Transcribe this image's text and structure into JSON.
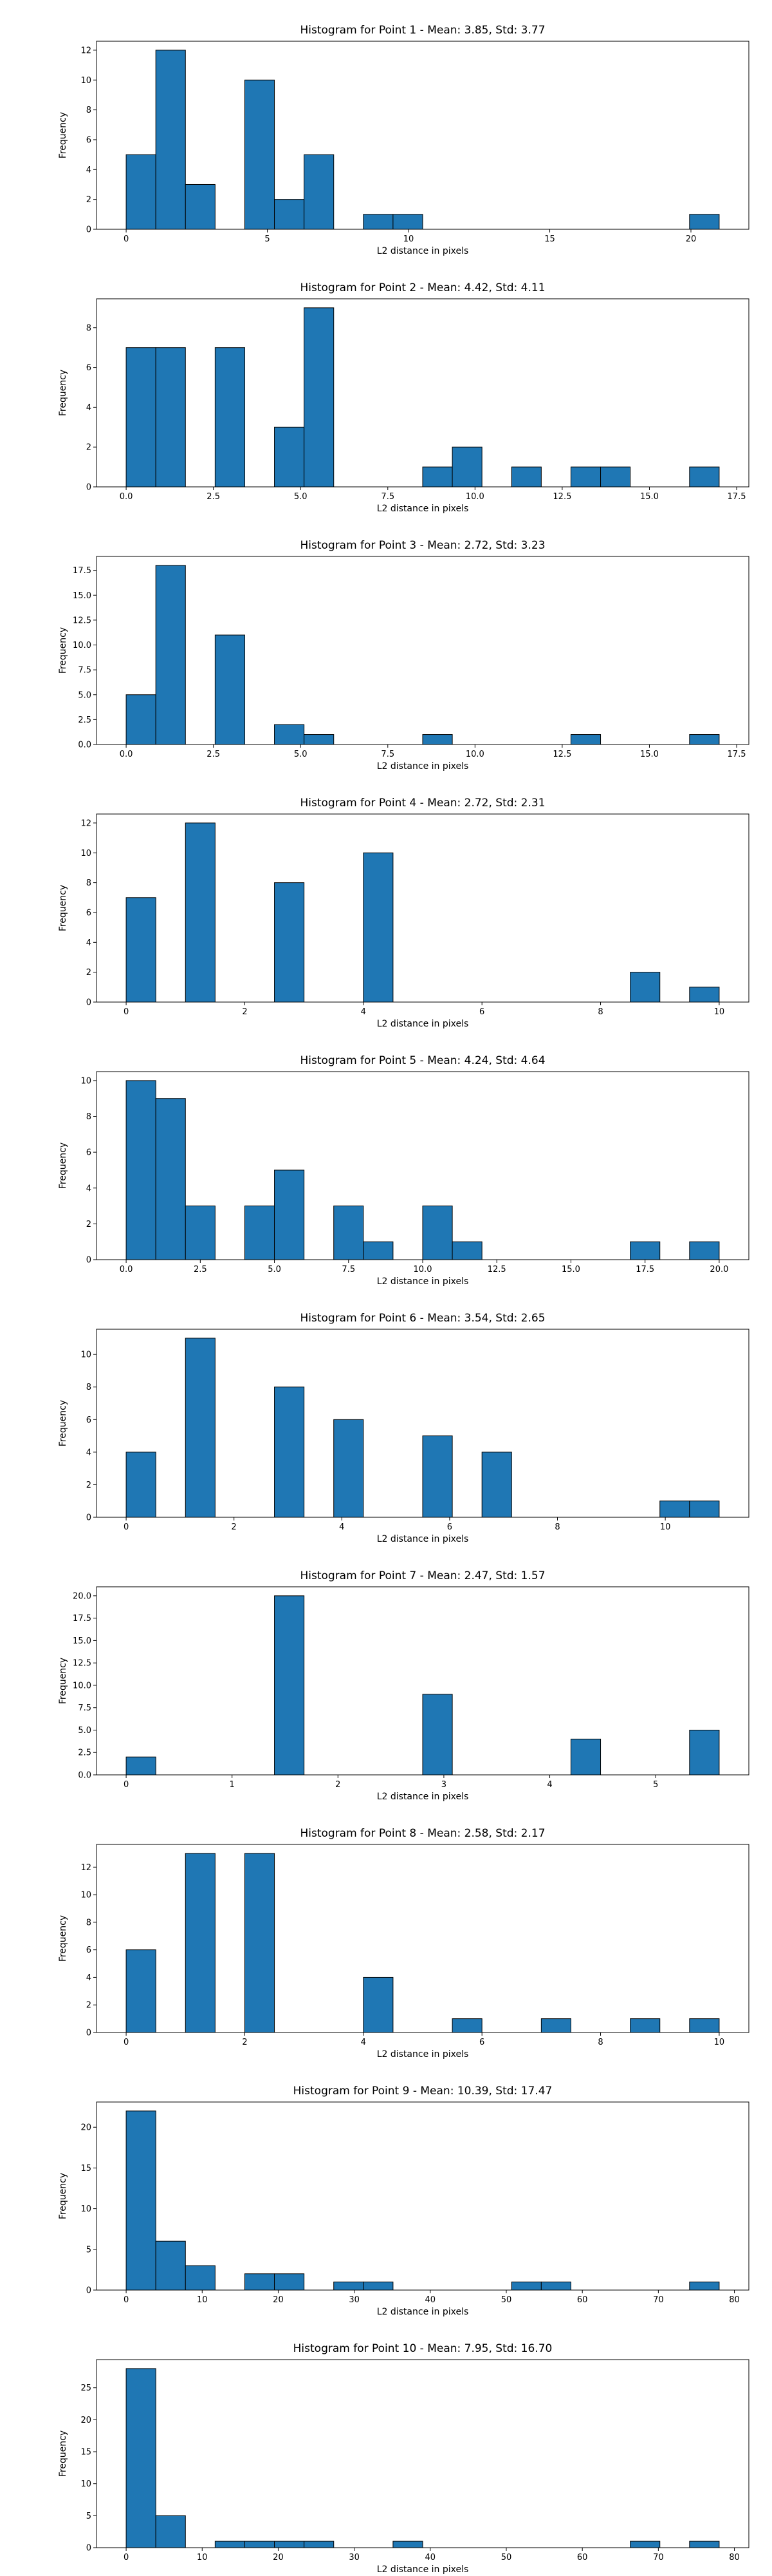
{
  "colors": {
    "bar_fill": "#1f77b4",
    "bar_edge": "#000000",
    "axes": "#000000",
    "background": "#ffffff"
  },
  "chart_data": [
    {
      "type": "bar",
      "title": "Histogram for Point 1 - Mean: 3.85, Std: 3.77",
      "xlabel": "L2 distance in pixels",
      "ylabel": "Frequency",
      "xlim": [
        -1.05,
        22.05
      ],
      "ylim": [
        0,
        12.6
      ],
      "xticks": [
        0,
        5,
        10,
        15,
        20
      ],
      "yticks": [
        0,
        2,
        4,
        6,
        8,
        10,
        12
      ],
      "grid": false,
      "bins": [
        [
          0,
          1.05,
          5
        ],
        [
          1.05,
          2.1,
          12
        ],
        [
          2.1,
          3.15,
          3
        ],
        [
          4.2,
          5.25,
          10
        ],
        [
          5.25,
          6.3,
          2
        ],
        [
          6.3,
          7.35,
          5
        ],
        [
          8.4,
          9.45,
          1
        ],
        [
          9.45,
          10.5,
          1
        ],
        [
          19.95,
          21.0,
          1
        ]
      ]
    },
    {
      "type": "bar",
      "title": "Histogram for Point 2 - Mean: 4.42, Std: 4.11",
      "xlabel": "L2 distance in pixels",
      "ylabel": "Frequency",
      "xlim": [
        -0.85,
        17.85
      ],
      "ylim": [
        0,
        9.45
      ],
      "xticks": [
        0.0,
        2.5,
        5.0,
        7.5,
        10.0,
        12.5,
        15.0,
        17.5
      ],
      "ytick_labels": [
        "0",
        "2",
        "4",
        "6",
        "8"
      ],
      "yticks": [
        0,
        2,
        4,
        6,
        8
      ],
      "grid": false,
      "bins": [
        [
          0,
          0.85,
          7
        ],
        [
          0.85,
          1.7,
          7
        ],
        [
          2.55,
          3.4,
          7
        ],
        [
          4.25,
          5.1,
          3
        ],
        [
          5.1,
          5.95,
          9
        ],
        [
          8.5,
          9.35,
          1
        ],
        [
          9.35,
          10.2,
          2
        ],
        [
          11.05,
          11.9,
          1
        ],
        [
          12.75,
          13.6,
          1
        ],
        [
          13.6,
          14.45,
          1
        ],
        [
          16.15,
          17.0,
          1
        ]
      ]
    },
    {
      "type": "bar",
      "title": "Histogram for Point 3 - Mean: 2.72, Std: 3.23",
      "xlabel": "L2 distance in pixels",
      "ylabel": "Frequency",
      "xlim": [
        -0.85,
        17.85
      ],
      "ylim": [
        0,
        18.9
      ],
      "xticks": [
        0.0,
        2.5,
        5.0,
        7.5,
        10.0,
        12.5,
        15.0,
        17.5
      ],
      "yticks": [
        0.0,
        2.5,
        5.0,
        7.5,
        10.0,
        12.5,
        15.0,
        17.5
      ],
      "grid": false,
      "bins": [
        [
          0,
          0.85,
          5
        ],
        [
          0.85,
          1.7,
          18
        ],
        [
          2.55,
          3.4,
          11
        ],
        [
          4.25,
          5.1,
          2
        ],
        [
          5.1,
          5.95,
          1
        ],
        [
          8.5,
          9.35,
          1
        ],
        [
          12.75,
          13.6,
          1
        ],
        [
          16.15,
          17.0,
          1
        ]
      ]
    },
    {
      "type": "bar",
      "title": "Histogram for Point 4 - Mean: 2.72, Std: 2.31",
      "xlabel": "L2 distance in pixels",
      "ylabel": "Frequency",
      "xlim": [
        -0.5,
        10.5
      ],
      "ylim": [
        0,
        12.6
      ],
      "xticks": [
        0,
        2,
        4,
        6,
        8,
        10
      ],
      "yticks": [
        0,
        2,
        4,
        6,
        8,
        10,
        12
      ],
      "grid": false,
      "bins": [
        [
          0,
          0.5,
          7
        ],
        [
          1.0,
          1.5,
          12
        ],
        [
          2.5,
          3.0,
          8
        ],
        [
          4.0,
          4.5,
          10
        ],
        [
          8.5,
          9.0,
          2
        ],
        [
          9.5,
          10.0,
          1
        ]
      ]
    },
    {
      "type": "bar",
      "title": "Histogram for Point 5 - Mean: 4.24, Std: 4.64",
      "xlabel": "L2 distance in pixels",
      "ylabel": "Frequency",
      "xlim": [
        -1.0,
        21.0
      ],
      "ylim": [
        0,
        10.5
      ],
      "xticks": [
        0.0,
        2.5,
        5.0,
        7.5,
        10.0,
        12.5,
        15.0,
        17.5,
        20.0
      ],
      "yticks": [
        0,
        2,
        4,
        6,
        8,
        10
      ],
      "grid": false,
      "bins": [
        [
          0,
          1,
          10
        ],
        [
          1,
          2,
          9
        ],
        [
          2,
          3,
          3
        ],
        [
          4,
          5,
          3
        ],
        [
          5,
          6,
          5
        ],
        [
          7,
          8,
          3
        ],
        [
          8,
          9,
          1
        ],
        [
          10,
          11,
          3
        ],
        [
          11,
          12,
          1
        ],
        [
          17,
          18,
          1
        ],
        [
          19,
          20,
          1
        ]
      ]
    },
    {
      "type": "bar",
      "title": "Histogram for Point 6 - Mean: 3.54, Std: 2.65",
      "xlabel": "L2 distance in pixels",
      "ylabel": "Frequency",
      "xlim": [
        -0.55,
        11.55
      ],
      "ylim": [
        0,
        11.55
      ],
      "xticks": [
        0,
        2,
        4,
        6,
        8,
        10
      ],
      "yticks": [
        0,
        2,
        4,
        6,
        8,
        10
      ],
      "grid": false,
      "bins": [
        [
          0,
          0.55,
          4
        ],
        [
          1.1,
          1.65,
          11
        ],
        [
          2.75,
          3.3,
          8
        ],
        [
          3.85,
          4.4,
          6
        ],
        [
          5.5,
          6.05,
          5
        ],
        [
          6.6,
          7.15,
          4
        ],
        [
          9.9,
          10.45,
          1
        ],
        [
          10.45,
          11.0,
          1
        ]
      ]
    },
    {
      "type": "bar",
      "title": "Histogram for Point 7 - Mean: 2.47, Std: 1.57",
      "xlabel": "L2 distance in pixels",
      "ylabel": "Frequency",
      "xlim": [
        -0.28,
        5.88
      ],
      "ylim": [
        0,
        21.0
      ],
      "xticks": [
        0,
        1,
        2,
        3,
        4,
        5
      ],
      "yticks": [
        0.0,
        2.5,
        5.0,
        7.5,
        10.0,
        12.5,
        15.0,
        17.5,
        20.0
      ],
      "grid": false,
      "bins": [
        [
          0,
          0.28,
          2
        ],
        [
          1.4,
          1.68,
          20
        ],
        [
          2.8,
          3.08,
          9
        ],
        [
          4.2,
          4.48,
          4
        ],
        [
          5.32,
          5.6,
          5
        ]
      ]
    },
    {
      "type": "bar",
      "title": "Histogram for Point 8 - Mean: 2.58, Std: 2.17",
      "xlabel": "L2 distance in pixels",
      "ylabel": "Frequency",
      "xlim": [
        -0.5,
        10.5
      ],
      "ylim": [
        0,
        13.65
      ],
      "xticks": [
        0,
        2,
        4,
        6,
        8,
        10
      ],
      "yticks": [
        0,
        2,
        4,
        6,
        8,
        10,
        12
      ],
      "grid": false,
      "bins": [
        [
          0,
          0.5,
          6
        ],
        [
          1.0,
          1.5,
          13
        ],
        [
          2.0,
          2.5,
          13
        ],
        [
          4.0,
          4.5,
          4
        ],
        [
          5.5,
          6.0,
          1
        ],
        [
          7.0,
          7.5,
          1
        ],
        [
          8.5,
          9.0,
          1
        ],
        [
          9.5,
          10.0,
          1
        ]
      ]
    },
    {
      "type": "bar",
      "title": "Histogram for Point 9 - Mean: 10.39, Std: 17.47",
      "xlabel": "L2 distance in pixels",
      "ylabel": "Frequency",
      "xlim": [
        -3.9,
        81.9
      ],
      "ylim": [
        0,
        23.1
      ],
      "xticks": [
        0,
        10,
        20,
        30,
        40,
        50,
        60,
        70,
        80
      ],
      "yticks": [
        0,
        5,
        10,
        15,
        20
      ],
      "grid": false,
      "bins": [
        [
          0,
          3.9,
          22
        ],
        [
          3.9,
          7.8,
          6
        ],
        [
          7.8,
          11.7,
          3
        ],
        [
          15.6,
          19.5,
          2
        ],
        [
          19.5,
          23.4,
          2
        ],
        [
          27.3,
          31.2,
          1
        ],
        [
          31.2,
          35.1,
          1
        ],
        [
          50.7,
          54.6,
          1
        ],
        [
          54.6,
          58.5,
          1
        ],
        [
          74.1,
          78.0,
          1
        ]
      ]
    },
    {
      "type": "bar",
      "title": "Histogram for Point 10 - Mean: 7.95, Std: 16.70",
      "xlabel": "L2 distance in pixels",
      "ylabel": "Frequency",
      "xlim": [
        -3.9,
        81.9
      ],
      "ylim": [
        0,
        29.4
      ],
      "xticks": [
        0,
        10,
        20,
        30,
        40,
        50,
        60,
        70,
        80
      ],
      "yticks": [
        0,
        5,
        10,
        15,
        20,
        25
      ],
      "grid": false,
      "bins": [
        [
          0,
          3.9,
          28
        ],
        [
          3.9,
          7.8,
          5
        ],
        [
          11.7,
          15.6,
          1
        ],
        [
          15.6,
          19.5,
          1
        ],
        [
          19.5,
          23.4,
          1
        ],
        [
          23.4,
          27.3,
          1
        ],
        [
          35.1,
          39.0,
          1
        ],
        [
          66.3,
          70.2,
          1
        ],
        [
          74.1,
          78.0,
          1
        ]
      ]
    }
  ]
}
